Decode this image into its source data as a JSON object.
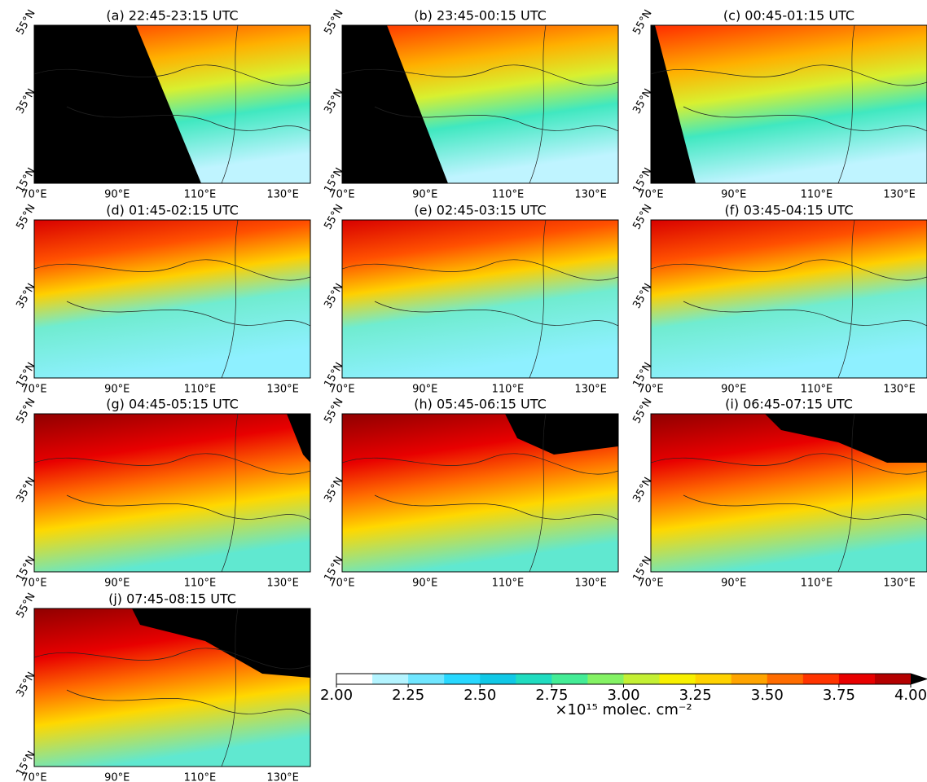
{
  "panels": [
    {
      "title": "(a) 22:45-23:15 UTC"
    },
    {
      "title": "(b) 23:45-00:15 UTC"
    },
    {
      "title": "(c) 00:45-01:15 UTC"
    },
    {
      "title": "(d) 01:45-02:15 UTC"
    },
    {
      "title": "(e) 02:45-03:15 UTC"
    },
    {
      "title": "(f) 03:45-04:15 UTC"
    },
    {
      "title": "(g) 04:45-05:15 UTC"
    },
    {
      "title": "(h) 05:45-06:15 UTC"
    },
    {
      "title": "(i) 06:45-07:15 UTC"
    },
    {
      "title": "(j) 07:45-08:15 UTC"
    }
  ],
  "axes": {
    "lon_labels": [
      "70°E",
      "90°E",
      "110°E",
      "130°E"
    ],
    "lat_labels": [
      "55°N",
      "35°N",
      "15°N"
    ]
  },
  "colorbar": {
    "range": [
      2,
      4
    ],
    "colors": [
      "#ffffff",
      "#b4f4ff",
      "#70e6ff",
      "#28d8ff",
      "#10c8e6",
      "#20dcc0",
      "#44ec96",
      "#84f264",
      "#c4f034",
      "#f8f000",
      "#ffd200",
      "#ffa400",
      "#ff6c00",
      "#ff3400",
      "#e80000",
      "#b40000"
    ],
    "extend_color": "#000000",
    "ticks": [
      {
        "value": 2,
        "label": "2.00"
      },
      {
        "value": 2.25,
        "label": "2.25"
      },
      {
        "value": 2.5,
        "label": "2.50"
      },
      {
        "value": 2.75,
        "label": "2.75"
      },
      {
        "value": 3,
        "label": "3.00"
      },
      {
        "value": 3.25,
        "label": "3.25"
      },
      {
        "value": 3.5,
        "label": "3.50"
      },
      {
        "value": 3.75,
        "label": "3.75"
      },
      {
        "value": 4,
        "label": "4.00"
      }
    ],
    "label": "×10¹⁵ molec. cm⁻²"
  }
}
